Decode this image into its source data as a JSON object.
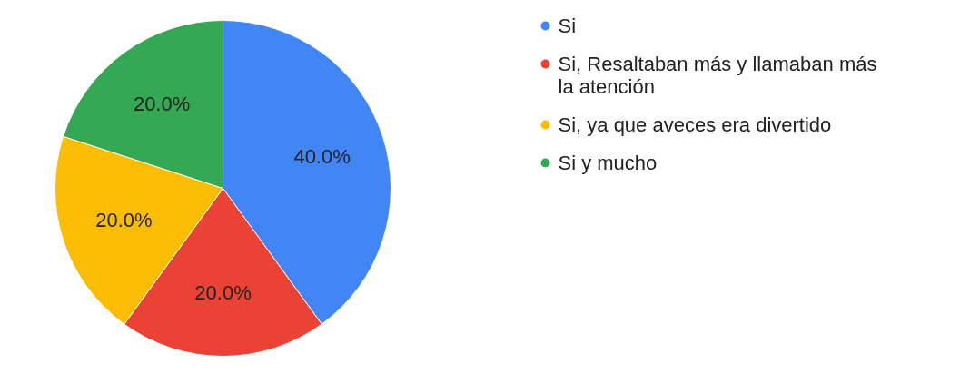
{
  "chart_data": {
    "type": "pie",
    "categories": [
      "Si",
      "Si, Resaltaban más y llamaban más la atención",
      "Si, ya que aveces era divertido",
      "Si y mucho"
    ],
    "values": [
      40,
      20,
      20,
      20
    ],
    "value_labels": [
      "40.0%",
      "20.0%",
      "20.0%",
      "20.0%"
    ],
    "colors": [
      "#4285f4",
      "#ea4335",
      "#fbbc04",
      "#34a853"
    ],
    "legend": "right"
  }
}
